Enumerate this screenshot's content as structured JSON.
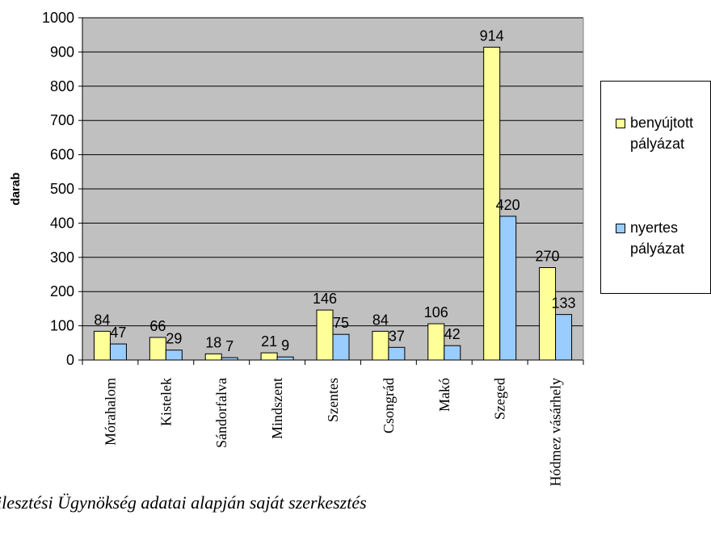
{
  "chart_data": {
    "type": "bar",
    "title": "",
    "xlabel": "",
    "ylabel": "darab",
    "ylim": [
      0,
      1000
    ],
    "yticks": [
      0,
      100,
      200,
      300,
      400,
      500,
      600,
      700,
      800,
      900,
      1000
    ],
    "categories": [
      "Mórahalom",
      "Kistelek",
      "Sándorfalva",
      "Mindszent",
      "Szentes",
      "Csongrád",
      "Makó",
      "Szeged",
      "Hódmez  vásárhely"
    ],
    "series": [
      {
        "name": "benyújtott pályázat",
        "values": [
          84,
          66,
          18,
          21,
          146,
          84,
          106,
          914,
          270
        ],
        "color": "#ffff99"
      },
      {
        "name": "nyertes pályázat",
        "values": [
          47,
          29,
          7,
          9,
          75,
          37,
          42,
          420,
          133
        ],
        "color": "#99ccff"
      }
    ],
    "plot_background": "#c0c0c0",
    "grid": true,
    "legend_position": "right"
  },
  "legend": {
    "items": [
      {
        "label": "benyújtott\npályázat"
      },
      {
        "label": "nyertes\npályázat"
      }
    ]
  },
  "source_note": "ilesztési Ügynökség adatai alapján saját szerkesztés"
}
